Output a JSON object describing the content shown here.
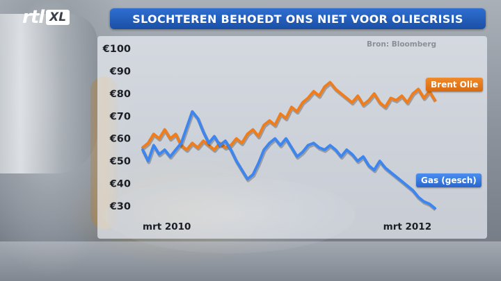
{
  "channel": {
    "logo_main": "rtl",
    "logo_sub": "XL"
  },
  "header": {
    "title": "SLOCHTEREN BEHOEDT ONS NIET VOOR OLIECRISIS"
  },
  "source": "Bron: Bloomberg",
  "colors": {
    "brent": "#ee7d1e",
    "gas": "#3e86ee",
    "title_bar": "#1f5bbb"
  },
  "chart_data": {
    "type": "line",
    "title": "SLOCHTEREN BEHOEDT ONS NIET VOOR OLIECRISIS",
    "xlabel": "",
    "ylabel": "",
    "ylim": [
      30,
      100
    ],
    "y_ticks": [
      "€100",
      "€90",
      "€80",
      "€70",
      "€60",
      "€50",
      "€40",
      "€30"
    ],
    "y_tick_values": [
      100,
      90,
      80,
      70,
      60,
      50,
      40,
      30
    ],
    "x_ticks": [
      "mrt 2010",
      "mrt 2012"
    ],
    "x_tick_values": [
      0,
      24
    ],
    "x_range": [
      0,
      26.5
    ],
    "grid": false,
    "series": [
      {
        "name": "Brent Olie",
        "x": [
          0,
          0.5,
          1,
          1.5,
          2,
          2.5,
          3,
          3.5,
          4,
          4.5,
          5,
          5.5,
          6,
          6.5,
          7,
          7.5,
          8,
          8.5,
          9,
          9.5,
          10,
          10.5,
          11,
          11.5,
          12,
          12.5,
          13,
          13.5,
          14,
          14.5,
          15,
          15.5,
          16,
          16.5,
          17,
          17.5,
          18,
          18.5,
          19,
          19.5,
          20,
          20.5,
          21,
          21.5,
          22,
          22.5,
          23,
          23.5,
          24,
          24.5,
          25,
          25.5,
          26,
          26.5
        ],
        "values": [
          56,
          58,
          62,
          60,
          64,
          60,
          62,
          57,
          55,
          58,
          56,
          59,
          57,
          55,
          58,
          56,
          57,
          60,
          58,
          62,
          64,
          61,
          66,
          68,
          66,
          71,
          69,
          74,
          72,
          76,
          78,
          81,
          79,
          83,
          85,
          82,
          80,
          78,
          76,
          79,
          75,
          77,
          80,
          76,
          74,
          78,
          77,
          79,
          76,
          80,
          82,
          78,
          81,
          77
        ],
        "color": "#ee7d1e"
      },
      {
        "name": "Gas (gesch)",
        "x": [
          0,
          0.5,
          1,
          1.5,
          2,
          2.5,
          3,
          3.5,
          4,
          4.5,
          5,
          5.5,
          6,
          6.5,
          7,
          7.5,
          8,
          8.5,
          9,
          9.5,
          10,
          10.5,
          11,
          11.5,
          12,
          12.5,
          13,
          13.5,
          14,
          14.5,
          15,
          15.5,
          16,
          16.5,
          17,
          17.5,
          18,
          18.5,
          19,
          19.5,
          20,
          20.5,
          21,
          21.5,
          22,
          22.5,
          23,
          23.5,
          24,
          24.5,
          25,
          25.5,
          26,
          26.5
        ],
        "values": [
          55,
          50,
          57,
          53,
          55,
          52,
          55,
          58,
          65,
          72,
          69,
          63,
          58,
          61,
          57,
          59,
          55,
          50,
          46,
          42,
          44,
          49,
          55,
          58,
          60,
          57,
          60,
          56,
          52,
          54,
          57,
          58,
          56,
          55,
          57,
          55,
          52,
          55,
          53,
          50,
          52,
          48,
          46,
          50,
          47,
          45,
          43,
          41,
          39,
          37,
          34,
          32,
          31,
          29
        ],
        "color": "#3e86ee"
      }
    ],
    "legend": "inline labels at line ends (right)"
  }
}
